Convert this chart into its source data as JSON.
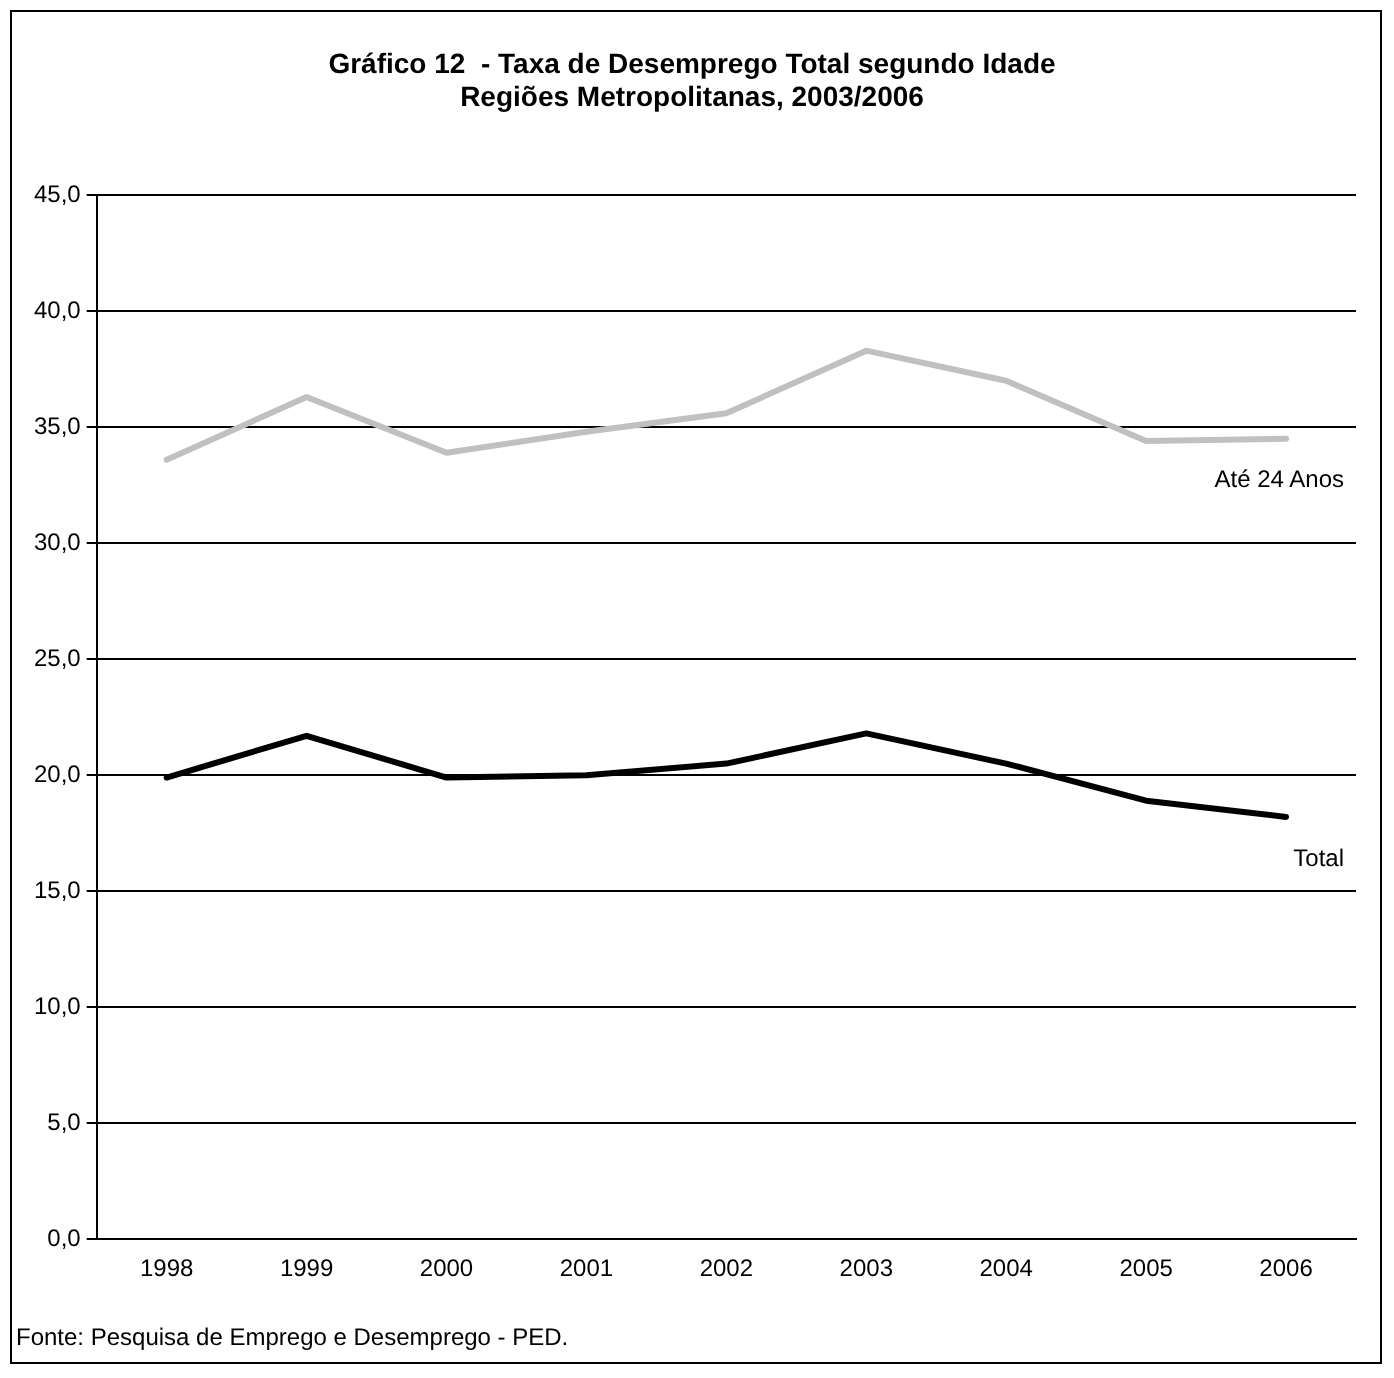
{
  "chart_data": {
    "type": "line",
    "title": "Gráfico 12  - Taxa de Desemprego Total segundo Idade\nRegiões Metropolitanas, 2003/2006",
    "categories": [
      "1998",
      "1999",
      "2000",
      "2001",
      "2002",
      "2003",
      "2004",
      "2005",
      "2006"
    ],
    "series": [
      {
        "name": "Até 24 Anos",
        "color": "#c0c0c0",
        "values": [
          33.6,
          36.3,
          33.9,
          34.8,
          35.6,
          38.3,
          37.0,
          34.4,
          34.5
        ]
      },
      {
        "name": "Total",
        "color": "#000000",
        "values": [
          19.9,
          21.7,
          19.9,
          20.0,
          20.5,
          21.8,
          20.5,
          18.9,
          18.2
        ]
      }
    ],
    "ylim": [
      0,
      45
    ],
    "yticks": [
      {
        "value": 0,
        "label": "0,0"
      },
      {
        "value": 5,
        "label": "5,0"
      },
      {
        "value": 10,
        "label": "10,0"
      },
      {
        "value": 15,
        "label": "15,0"
      },
      {
        "value": 20,
        "label": "20,0"
      },
      {
        "value": 25,
        "label": "25,0"
      },
      {
        "value": 30,
        "label": "30,0"
      },
      {
        "value": 35,
        "label": "35,0"
      },
      {
        "value": 40,
        "label": "40,0"
      },
      {
        "value": 45,
        "label": "45,0"
      }
    ],
    "grid": "y",
    "legend": false,
    "marker": "none",
    "line_style": "solid",
    "annotations": [
      "Fonte: Pesquisa de Emprego e Desemprego - PED."
    ]
  }
}
